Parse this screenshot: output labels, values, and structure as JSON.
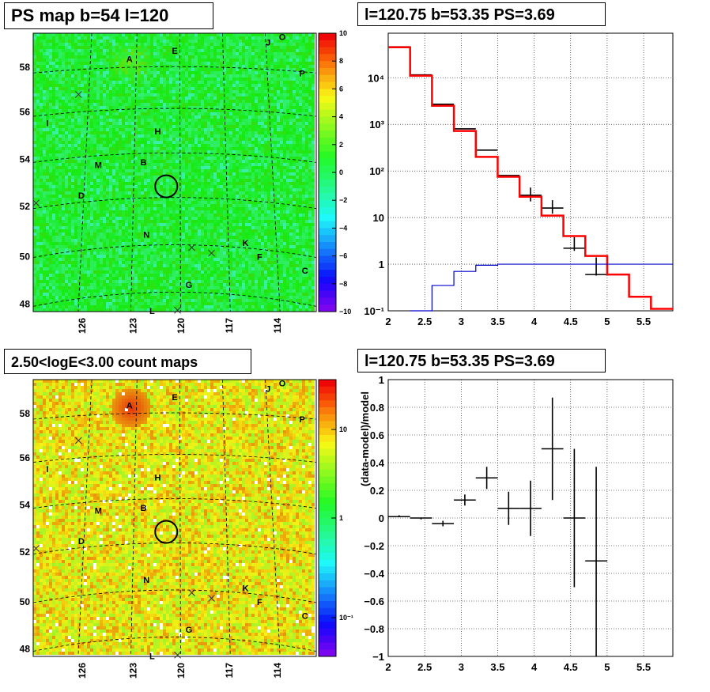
{
  "panels": {
    "ps_map_title": "PS map b=54 l=120",
    "spectrum_title": "l=120.75 b=53.35 PS=3.69",
    "count_map_title": "2.50<logE<3.00 count maps",
    "residual_title": "l=120.75 b=53.35 PS=3.69"
  },
  "colors": {
    "map_green": "#33e64a",
    "data": "#000000",
    "model": "#ff0000",
    "background_model": "#0000cc"
  },
  "chart_data": [
    {
      "type": "heatmap",
      "title": "PS map b=54 l=120",
      "x_ticks": [
        "126",
        "123",
        "120",
        "117",
        "114"
      ],
      "y_ticks": [
        "48",
        "50",
        "52",
        "54",
        "56",
        "58"
      ],
      "colorbar": {
        "range": [
          -10,
          10
        ],
        "ticks": [
          "10",
          "8",
          "6",
          "4",
          "2",
          "0",
          "−2",
          "−4",
          "−6",
          "−8",
          "−10"
        ]
      },
      "markers": [
        "A",
        "B",
        "C",
        "D",
        "E",
        "F",
        "G",
        "H",
        "I",
        "J",
        "K",
        "L",
        "M",
        "N",
        "O",
        "P"
      ],
      "source_circle": {
        "l": 120.75,
        "b": 53.35
      }
    },
    {
      "type": "line",
      "title": "l=120.75 b=53.35 PS=3.69",
      "yscale": "log",
      "xlim": [
        2.0,
        5.9
      ],
      "ylim": [
        0.1,
        90000
      ],
      "x_ticks": [
        "2",
        "2.5",
        "3",
        "3.5",
        "4",
        "4.5",
        "5",
        "5.5"
      ],
      "y_ticks": [
        "10⁻¹",
        "1",
        "10",
        "10²",
        "10³",
        "10⁴"
      ],
      "series": [
        {
          "style": "data",
          "x": [
            2.15,
            2.45,
            2.75,
            3.05,
            3.35,
            3.65,
            3.95,
            4.25,
            4.55,
            4.85
          ],
          "y": [
            46000,
            11500,
            2700,
            800,
            280,
            80,
            30,
            16,
            2.2,
            0.6
          ],
          "yerr_low": [
            46000,
            11500,
            2700,
            800,
            280,
            80,
            26,
            13,
            0.9,
            0.1
          ],
          "yerr_high": [
            46000,
            11500,
            2700,
            800,
            280,
            80,
            35,
            19,
            4.0,
            2.0
          ]
        },
        {
          "style": "model_step",
          "edges": [
            2.0,
            2.3,
            2.6,
            2.9,
            3.2,
            3.5,
            3.8,
            4.1,
            4.4,
            4.7,
            5.0,
            5.3,
            5.6,
            5.9
          ],
          "values": [
            45000,
            11000,
            2500,
            720,
            200,
            75,
            28,
            11,
            4,
            1.5,
            0.6,
            0.2,
            0.11
          ]
        },
        {
          "style": "background_step",
          "edges": [
            2.3,
            2.6,
            2.9,
            3.2,
            3.5,
            5.9
          ],
          "values": [
            0.1,
            0.35,
            0.7,
            0.95,
            1.0
          ]
        }
      ]
    },
    {
      "type": "heatmap",
      "title": "2.50<logE<3.00 count maps",
      "x_ticks": [
        "126",
        "123",
        "120",
        "117",
        "114"
      ],
      "y_ticks": [
        "48",
        "50",
        "52",
        "54",
        "56",
        "58"
      ],
      "colorbar": {
        "scale": "log",
        "ticks": [
          "10",
          "1",
          "10⁻¹"
        ]
      },
      "markers": [
        "A",
        "B",
        "C",
        "D",
        "E",
        "F",
        "G",
        "H",
        "I",
        "J",
        "K",
        "L",
        "M",
        "N",
        "O",
        "P"
      ],
      "source_circle": {
        "l": 120.75,
        "b": 53.35
      }
    },
    {
      "type": "scatter",
      "title": "l=120.75 b=53.35 PS=3.69",
      "ylabel": "(data-model)/model",
      "xlim": [
        2.0,
        5.9
      ],
      "ylim": [
        -1.0,
        1.0
      ],
      "x_ticks": [
        "2",
        "2.5",
        "3",
        "3.5",
        "4",
        "4.5",
        "5",
        "5.5"
      ],
      "y_ticks": [
        "1",
        "0.8",
        "0.6",
        "0.4",
        "0.2",
        "0",
        "−0.2",
        "−0.4",
        "−0.6",
        "−0.8",
        "−1"
      ],
      "points": [
        {
          "x": 2.15,
          "y": 0.01,
          "xerr": 0.15,
          "yerr": [
            0.0,
            0.01
          ]
        },
        {
          "x": 2.45,
          "y": 0.0,
          "xerr": 0.15,
          "yerr": [
            0.01,
            0.0
          ]
        },
        {
          "x": 2.75,
          "y": -0.04,
          "xerr": 0.15,
          "yerr": [
            0.02,
            0.02
          ]
        },
        {
          "x": 3.05,
          "y": 0.13,
          "xerr": 0.15,
          "yerr": [
            0.04,
            0.04
          ]
        },
        {
          "x": 3.35,
          "y": 0.29,
          "xerr": 0.15,
          "yerr": [
            0.08,
            0.08
          ]
        },
        {
          "x": 3.65,
          "y": 0.07,
          "xerr": 0.15,
          "yerr": [
            0.12,
            0.12
          ]
        },
        {
          "x": 3.95,
          "y": 0.07,
          "xerr": 0.15,
          "yerr": [
            0.2,
            0.2
          ]
        },
        {
          "x": 4.25,
          "y": 0.5,
          "xerr": 0.15,
          "yerr": [
            0.37,
            0.37
          ]
        },
        {
          "x": 4.55,
          "y": 0.0,
          "xerr": 0.15,
          "yerr": [
            0.5,
            0.5
          ]
        },
        {
          "x": 4.85,
          "y": -0.31,
          "xerr": 0.15,
          "yerr": [
            0.69,
            0.68
          ]
        }
      ]
    }
  ]
}
